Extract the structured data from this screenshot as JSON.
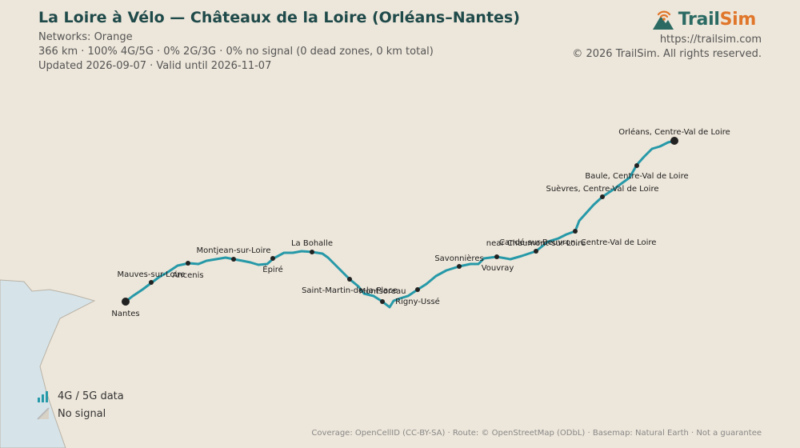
{
  "title": "La Loire à Vélo — Châteaux de la Loire (Orléans–Nantes)",
  "networks": "Networks: Orange",
  "stats": "366 km · 100% 4G/5G · 0% 2G/3G · 0% no signal (0 dead zones, 0 km total)",
  "updated": "Updated 2026-09-07 · Valid until 2026-11-07",
  "brand": {
    "name_part1": "Trail",
    "name_part2": "Sim",
    "url": "https://trailsim.com",
    "copyright": "© 2026 TrailSim. All rights reserved."
  },
  "legend": [
    {
      "label": "4G / 5G data",
      "icon": "signal-bars-icon",
      "color": "#2699a8"
    },
    {
      "label": "No signal",
      "icon": "no-signal-icon",
      "color": "#bbbbbb"
    }
  ],
  "footer": "Coverage: OpenCellID (CC-BY-SA) · Route: © OpenStreetMap (ODbL) · Basemap: Natural Earth · Not a guarantee",
  "colors": {
    "route": "#2699a8",
    "background": "#ede6da",
    "sea": "#d6e4ea",
    "title": "#1f4a4a"
  },
  "places": [
    {
      "name": "Orléans, Centre-Val de Loire"
    },
    {
      "name": "Baule, Centre-Val de Loire"
    },
    {
      "name": "Suèvres, Centre-Val de Loire"
    },
    {
      "name": "Candé-sur-Beuvron, Centre-Val de Loire"
    },
    {
      "name": "near Chaumont-sur-Loire"
    },
    {
      "name": "Vouvray"
    },
    {
      "name": "Savonnières"
    },
    {
      "name": "Rigny-Ussé"
    },
    {
      "name": "Montsoreau"
    },
    {
      "name": "Saint-Martin-de-la-Place"
    },
    {
      "name": "La Bohalle"
    },
    {
      "name": "Épiré"
    },
    {
      "name": "Montjean-sur-Loire"
    },
    {
      "name": "Ancenis"
    },
    {
      "name": "Mauves-sur-Loire"
    },
    {
      "name": "Nantes"
    }
  ]
}
